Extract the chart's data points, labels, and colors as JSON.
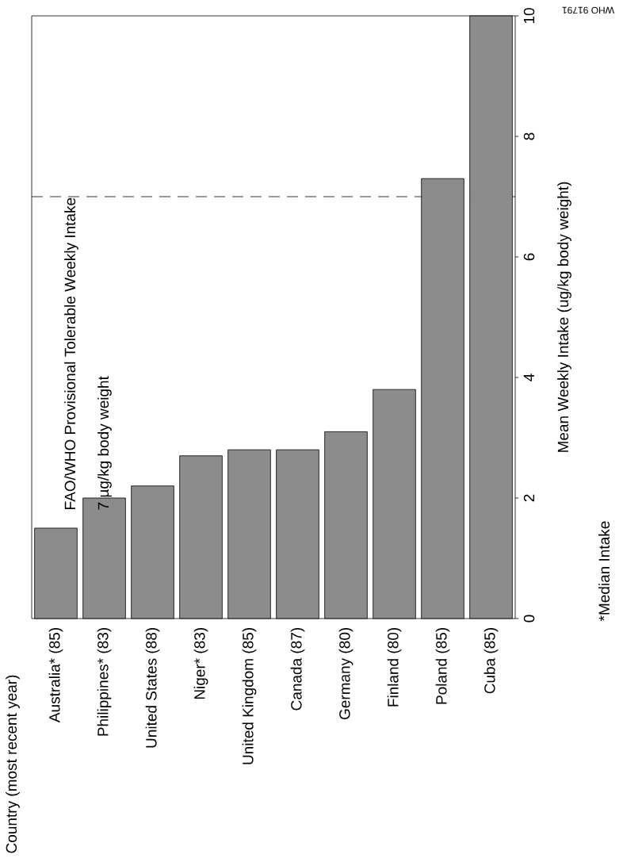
{
  "chart_data": {
    "type": "bar",
    "ylabel": "Mean Weekly Intake (ug/kg body weight)",
    "categories": [
      "Australia*  (85)",
      "Philippines*  (83)",
      "United States  (88)",
      "Niger*  (83)",
      "United Kingdom  (85)",
      "Canada  (87)",
      "Germany  (80)",
      "Finland  (80)",
      "Poland  (85)",
      "Cuba  (85)"
    ],
    "values": [
      1.5,
      2.0,
      2.2,
      2.7,
      2.8,
      2.8,
      3.1,
      3.8,
      7.3,
      10.0
    ],
    "color": "#8c8c8c",
    "ylim": [
      0,
      10
    ],
    "yticks": [
      0,
      2,
      4,
      6,
      8,
      10
    ],
    "ref_lines": [
      {
        "axis": "y",
        "value": 7,
        "label": "FAO/WHO Provisional Tolerable Weekly Intake",
        "line_style": "dashed"
      }
    ],
    "annotations": [
      "7 µg/kg body weight",
      "*Median Intake",
      "WHO 91791",
      "Country (most recent year)"
    ]
  }
}
